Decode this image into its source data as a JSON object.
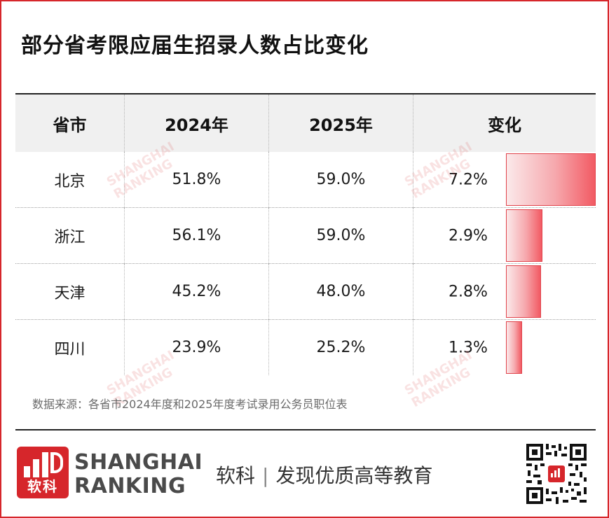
{
  "title": "部分省考限应届生招录人数占比变化",
  "table": {
    "headers": [
      "省市",
      "2024年",
      "2025年",
      "变化"
    ],
    "rows": [
      {
        "city": "北京",
        "y2024": "51.8%",
        "y2025": "59.0%",
        "change": "7.2%",
        "change_value": 7.2
      },
      {
        "city": "浙江",
        "y2024": "56.1%",
        "y2025": "59.0%",
        "change": "2.9%",
        "change_value": 2.9
      },
      {
        "city": "天津",
        "y2024": "45.2%",
        "y2025": "48.0%",
        "change": "2.8%",
        "change_value": 2.8
      },
      {
        "city": "四川",
        "y2024": "23.9%",
        "y2025": "25.2%",
        "change": "1.3%",
        "change_value": 1.3
      }
    ],
    "bar_max": 7.2,
    "bar_color": "#f25a63"
  },
  "source": "数据来源：各省市2024年度和2025年度考试录用公务员职位表",
  "footer": {
    "logo_text": "软科",
    "brand_line1": "SHANGHAI",
    "brand_line2": "RANKING",
    "slogan_left": "软科",
    "slogan_sep": "|",
    "slogan_right": "发现优质高等教育"
  },
  "watermark": {
    "line1": "SHANGHAI",
    "line2": "RANKING"
  },
  "colors": {
    "brand_red": "#d6262b",
    "header_bg": "#f0f0f0"
  }
}
